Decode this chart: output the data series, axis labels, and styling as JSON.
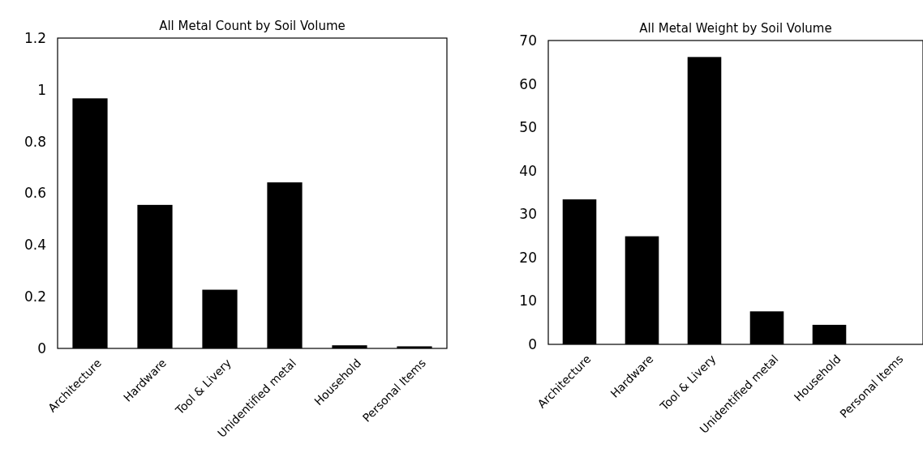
{
  "chart_data": [
    {
      "type": "bar",
      "title": "All Metal Count by Soil Volume",
      "categories": [
        "Architecture",
        "Hardware",
        "Tool & Livery",
        "Unidentified metal",
        "Household",
        "Personal Items"
      ],
      "values": [
        0.967,
        0.555,
        0.227,
        0.642,
        0.012,
        0.008
      ],
      "color": "#000000",
      "ylim": [
        0,
        1.2
      ],
      "yticks": [
        0,
        0.2,
        0.4,
        0.6,
        0.8,
        1,
        1.2
      ],
      "grid": false
    },
    {
      "type": "bar",
      "title": "All Metal Weight by Soil Volume",
      "categories": [
        "Architecture",
        "Hardware",
        "Tool & Livery",
        "Unidentified metal",
        "Household",
        "Personal Items"
      ],
      "values": [
        33.4,
        24.9,
        66.2,
        7.6,
        4.5,
        0
      ],
      "color": "#000000",
      "ylim": [
        0,
        70
      ],
      "yticks": [
        0,
        10,
        20,
        30,
        40,
        50,
        60,
        70
      ],
      "grid": false
    }
  ]
}
